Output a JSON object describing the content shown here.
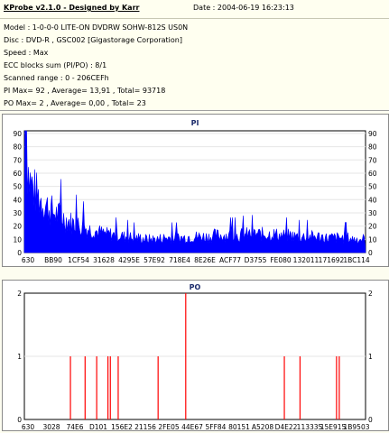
{
  "header": {
    "title": "KProbe v2.1.0 - Designed by Karr",
    "date": "Date : 2004-06-19 16:23:13",
    "model": "Model : 1-0-0-0 LITE-ON DVDRW SOHW-812S  US0N",
    "disc": "Disc : DVD-R , GSC002 [Gigastorage Corporation]",
    "speed": "Speed : Max",
    "ecc": "ECC blocks sum (PI/PO) : 8/1",
    "range": "Scanned range : 0 - 206CEFh",
    "pi_stats": "PI Max= 92 , Average= 13,91 , Total= 93718",
    "po_stats": "PO Max= 2 , Average= 0,00 , Total= 23"
  },
  "pi_chart": {
    "title": "PI",
    "color": "#0000ff",
    "y_ticks": [
      "90",
      "80",
      "70",
      "60",
      "50",
      "40",
      "30",
      "20",
      "10",
      "0"
    ],
    "x_ticks": [
      "630",
      "BB90",
      "1CF54",
      "31628",
      "4295E",
      "57E92",
      "718E4",
      "8E26E",
      "ACF77",
      "D3755",
      "FE080",
      "132011",
      "171692",
      "1BC114"
    ]
  },
  "po_chart": {
    "title": "PO",
    "color": "#ff0000",
    "y_ticks": [
      "2",
      "1",
      "0"
    ],
    "x_ticks": [
      "630",
      "3028",
      "74E6",
      "D101",
      "156E2",
      "21156",
      "2FE05",
      "44E67",
      "5FF84",
      "80151",
      "A5208",
      "D4E22",
      "113335",
      "15E915",
      "1B9503"
    ]
  },
  "chart_data": [
    {
      "type": "area",
      "title": "PI",
      "ylim": [
        0,
        92
      ],
      "y_ticks": [
        0,
        10,
        20,
        30,
        40,
        50,
        60,
        70,
        80,
        90
      ],
      "x_tick_labels": [
        "630",
        "BB90",
        "1CF54",
        "31628",
        "4295E",
        "57E92",
        "718E4",
        "8E26E",
        "ACF77",
        "D3755",
        "FE080",
        "132011",
        "171692",
        "1BC114"
      ],
      "series": [
        {
          "values": [
            92,
            60,
            52,
            46,
            42,
            38,
            35,
            32,
            30,
            28,
            26,
            24,
            23,
            21,
            20,
            19,
            18,
            17,
            16,
            15,
            15,
            14,
            14,
            13,
            13,
            12,
            12,
            12,
            11,
            11,
            11,
            11,
            12,
            12,
            12,
            12,
            12,
            12,
            13,
            13,
            13,
            13,
            13,
            13,
            14,
            14,
            14,
            14,
            14,
            14,
            14,
            15,
            15,
            15,
            15,
            15,
            15,
            15,
            15,
            14,
            14,
            14,
            14,
            13,
            13,
            13,
            13,
            13,
            13,
            13,
            12,
            12,
            12,
            12,
            12,
            12,
            11,
            11,
            11,
            11
          ]
        }
      ]
    },
    {
      "type": "bar",
      "title": "PO",
      "ylim": [
        0,
        2
      ],
      "y_ticks": [
        0,
        1,
        2
      ],
      "x_tick_labels": [
        "630",
        "3028",
        "74E6",
        "D101",
        "156E2",
        "21156",
        "2FE05",
        "44E67",
        "5FF84",
        "80151",
        "A5208",
        "D4E22",
        "113335",
        "15E915",
        "1B9503"
      ],
      "series": [
        {
          "x_fraction": [
            0.135,
            0.178,
            0.212,
            0.245,
            0.252,
            0.275,
            0.392,
            0.473,
            0.762,
            0.808,
            0.915,
            0.923
          ],
          "values": [
            1,
            1,
            1,
            1,
            1,
            1,
            1,
            2,
            1,
            1,
            1,
            1
          ]
        }
      ]
    }
  ]
}
